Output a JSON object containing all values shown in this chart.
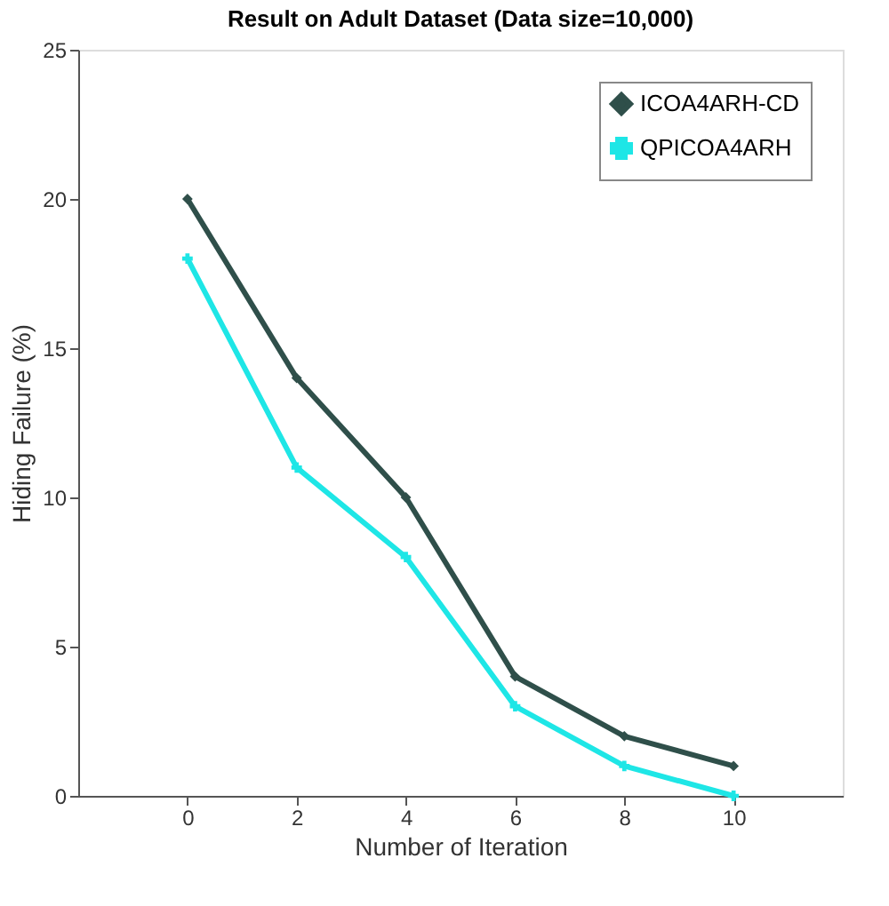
{
  "chart_data": {
    "type": "line",
    "title": "Result on Adult Dataset (Data size=10,000)",
    "xlabel": "Number of Iteration",
    "ylabel": "Hiding Failure (%)",
    "x": [
      0,
      2,
      4,
      6,
      8,
      10
    ],
    "series": [
      {
        "name": "ICOA4ARH-CD",
        "color": "#2f4f4a",
        "marker": "diamond",
        "values": [
          20,
          14,
          10,
          4,
          2,
          1
        ]
      },
      {
        "name": "QPICOA4ARH",
        "color": "#1ee6e6",
        "marker": "cross",
        "values": [
          18,
          11,
          8,
          3,
          1,
          0
        ]
      }
    ],
    "xlim": [
      -2,
      12
    ],
    "xticks": [
      0,
      2,
      4,
      6,
      8,
      10
    ],
    "ylim": [
      0,
      25
    ],
    "yticks": [
      0,
      5,
      10,
      15,
      20,
      25
    ],
    "grid": false,
    "legend": "top right",
    "line_style": "solid"
  }
}
